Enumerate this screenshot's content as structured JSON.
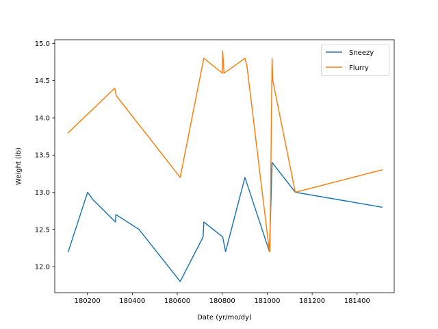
{
  "chart_data": {
    "type": "line",
    "title": "",
    "xlabel": "Date (yr/mo/dy)",
    "ylabel": "Weight (lb)",
    "xlim": [
      180055,
      181565
    ],
    "ylim": [
      11.65,
      15.05
    ],
    "xticks": [
      180200,
      180400,
      180600,
      180800,
      181000,
      181200,
      181400
    ],
    "xtick_labels": [
      "180200",
      "180400",
      "180600",
      "180800",
      "181000",
      "181200",
      "181400"
    ],
    "yticks": [
      12.0,
      12.5,
      13.0,
      13.5,
      14.0,
      14.5,
      15.0
    ],
    "ytick_labels": [
      "12.0",
      "12.5",
      "13.0",
      "13.5",
      "14.0",
      "14.5",
      "15.0"
    ],
    "grid": false,
    "legend_position": "upper right",
    "series": [
      {
        "name": "Sneezy",
        "color": "#1f77b4",
        "x": [
          180115,
          180201,
          180225,
          180325,
          180327,
          180430,
          180613,
          180715,
          180718,
          180802,
          180815,
          180901,
          181010,
          181022,
          181125,
          181510
        ],
        "y": [
          12.2,
          13.0,
          12.9,
          12.6,
          12.7,
          12.5,
          11.8,
          12.4,
          12.6,
          12.4,
          12.2,
          13.2,
          12.2,
          13.4,
          13.0,
          12.8
        ]
      },
      {
        "name": "Flurry",
        "color": "#ff7f0e",
        "x": [
          180115,
          180322,
          180328,
          180613,
          180718,
          180801,
          180802,
          180808,
          180901,
          180910,
          181010,
          181012,
          181022,
          181025,
          181125,
          181510
        ],
        "y": [
          13.8,
          14.4,
          14.3,
          13.2,
          14.8,
          14.6,
          14.9,
          14.6,
          14.8,
          14.7,
          12.2,
          12.2,
          14.8,
          14.5,
          13.0,
          13.3
        ]
      }
    ]
  }
}
